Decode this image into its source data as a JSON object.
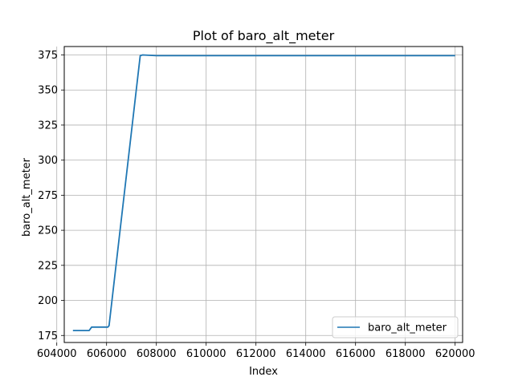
{
  "chart_data": {
    "type": "line",
    "title": "Plot of baro_alt_meter",
    "xlabel": "Index",
    "ylabel": "baro_alt_meter",
    "xlim": [
      604300,
      620300
    ],
    "ylim": [
      170,
      381
    ],
    "x_ticks": [
      604000,
      606000,
      608000,
      610000,
      612000,
      614000,
      616000,
      618000,
      620000
    ],
    "y_ticks": [
      175,
      200,
      225,
      250,
      275,
      300,
      325,
      350,
      375
    ],
    "grid": true,
    "legend_position": "lower-right",
    "series": [
      {
        "name": "baro_alt_meter",
        "color": "#1f77b4",
        "x": [
          604650,
          605300,
          605400,
          605500,
          606050,
          606100,
          607350,
          607450,
          608000,
          610000,
          612000,
          614000,
          616000,
          618000,
          620000
        ],
        "y": [
          178.5,
          178.5,
          181,
          181,
          181,
          182,
          374.5,
          375,
          374.5,
          374.5,
          374.5,
          374.5,
          374.5,
          374.5,
          374.5
        ]
      }
    ]
  }
}
